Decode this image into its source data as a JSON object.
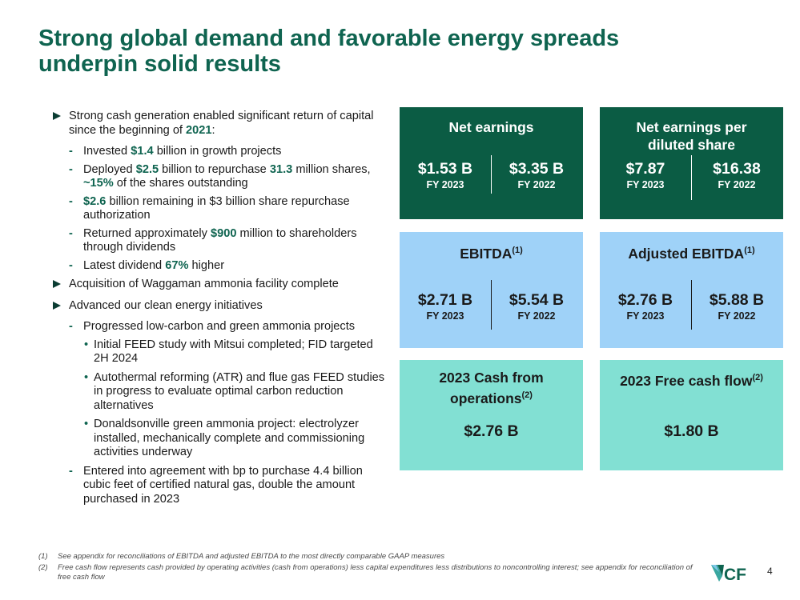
{
  "title": {
    "line1": "Strong global demand and favorable energy spreads",
    "line2": "underpin solid results"
  },
  "bullets": {
    "b1": {
      "pre": "Strong cash generation enabled significant return of capital since the beginning of ",
      "hl": "2021",
      "post": ":"
    },
    "sub1": {
      "pre": "Invested ",
      "hl": "$1.4",
      "post": " billion in growth projects"
    },
    "sub2": {
      "pre": "Deployed ",
      "hl1": "$2.5",
      "mid1": " billion to repurchase ",
      "hl2": "31.3",
      "mid2": " million shares, ",
      "hl3": "~15%",
      "post": " of the shares outstanding"
    },
    "sub3": {
      "hl": "$2.6",
      "post": " billion remaining in $3 billion share repurchase authorization"
    },
    "sub4": {
      "pre": "Returned approximately ",
      "hl": "$900",
      "post": " million to shareholders through dividends"
    },
    "sub5": {
      "pre": "Latest dividend ",
      "hl": "67%",
      "post": " higher"
    },
    "b2": "Acquisition of Waggaman ammonia facility complete",
    "b3": "Advanced our clean energy initiatives",
    "sub6": "Progressed low-carbon and green ammonia projects",
    "dot1": "Initial FEED study with Mitsui completed; FID targeted 2H 2024",
    "dot2": "Autothermal reforming (ATR) and flue gas FEED studies in progress to evaluate optimal carbon reduction alternatives",
    "dot3": "Donaldsonville green ammonia project: electrolyzer installed, mechanically complete and commissioning activities underway",
    "sub7": "Entered into agreement with bp to purchase 4.4 billion cubic feet of certified natural gas, double the amount purchased in 2023"
  },
  "cards": {
    "net_earnings": {
      "title": "Net earnings",
      "v1": "$1.53 B",
      "l1": "FY 2023",
      "v2": "$3.35 B",
      "l2": "FY 2022"
    },
    "eps": {
      "title": "Net earnings per diluted share",
      "v1": "$7.87",
      "l1": "FY 2023",
      "v2": "$16.38",
      "l2": "FY 2022"
    },
    "ebitda": {
      "title": "EBITDA",
      "sup": "(1)",
      "v1": "$2.71 B",
      "l1": "FY 2023",
      "v2": "$5.54 B",
      "l2": "FY 2022"
    },
    "adj_ebitda": {
      "title": "Adjusted EBITDA",
      "sup": "(1)",
      "v1": "$2.76 B",
      "l1": "FY 2023",
      "v2": "$5.88 B",
      "l2": "FY 2022"
    },
    "cfo": {
      "title": "2023 Cash from operations",
      "sup": "(2)",
      "value": "$2.76 B"
    },
    "fcf": {
      "title": "2023 Free cash flow",
      "sup": "(2)",
      "value": "$1.80 B"
    }
  },
  "footnotes": [
    {
      "num": "(1)",
      "text": "See appendix for reconciliations of EBITDA and adjusted EBITDA to the most directly comparable GAAP measures"
    },
    {
      "num": "(2)",
      "text": "Free cash flow represents cash provided by operating activities (cash from operations) less capital expenditures less distributions to noncontrolling interest; see appendix for reconciliation of free cash flow"
    }
  ],
  "logo": {
    "text": "CF"
  },
  "page_number": "4",
  "colors": {
    "brand_green": "#0f6450",
    "dark_card": "#0b5c44",
    "blue_card": "#9fd2f8",
    "teal_card": "#82e0d3"
  }
}
